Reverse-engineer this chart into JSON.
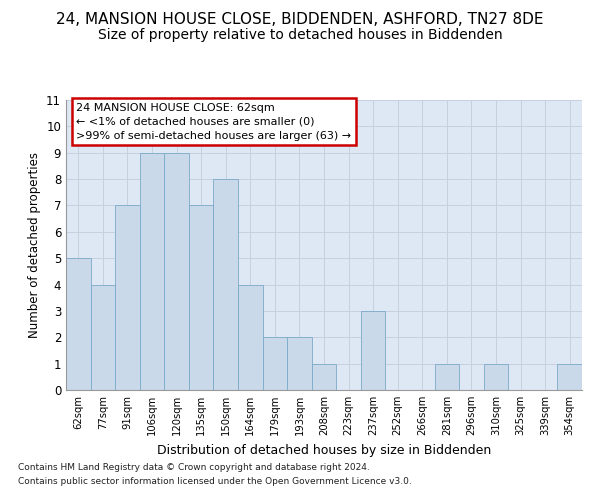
{
  "title": "24, MANSION HOUSE CLOSE, BIDDENDEN, ASHFORD, TN27 8DE",
  "subtitle": "Size of property relative to detached houses in Biddenden",
  "xlabel": "Distribution of detached houses by size in Biddenden",
  "ylabel": "Number of detached properties",
  "categories": [
    "62sqm",
    "77sqm",
    "91sqm",
    "106sqm",
    "120sqm",
    "135sqm",
    "150sqm",
    "164sqm",
    "179sqm",
    "193sqm",
    "208sqm",
    "223sqm",
    "237sqm",
    "252sqm",
    "266sqm",
    "281sqm",
    "296sqm",
    "310sqm",
    "325sqm",
    "339sqm",
    "354sqm"
  ],
  "values": [
    5,
    4,
    7,
    9,
    9,
    7,
    8,
    4,
    2,
    2,
    1,
    0,
    3,
    0,
    0,
    1,
    0,
    1,
    0,
    0,
    1
  ],
  "bar_color": "#c9d9ea",
  "bar_edge_color": "#7aaac8",
  "ylim": [
    0,
    11
  ],
  "yticks": [
    0,
    1,
    2,
    3,
    4,
    5,
    6,
    7,
    8,
    9,
    10,
    11
  ],
  "annotation_line1": "24 MANSION HOUSE CLOSE: 62sqm",
  "annotation_line2": "← <1% of detached houses are smaller (0)",
  "annotation_line3": ">99% of semi-detached houses are larger (63) →",
  "annotation_box_color": "#cc0000",
  "footer1": "Contains HM Land Registry data © Crown copyright and database right 2024.",
  "footer2": "Contains public sector information licensed under the Open Government Licence v3.0.",
  "grid_color": "#c8d0e0",
  "bg_color": "#dde8f4",
  "title_fontsize": 11,
  "subtitle_fontsize": 10
}
